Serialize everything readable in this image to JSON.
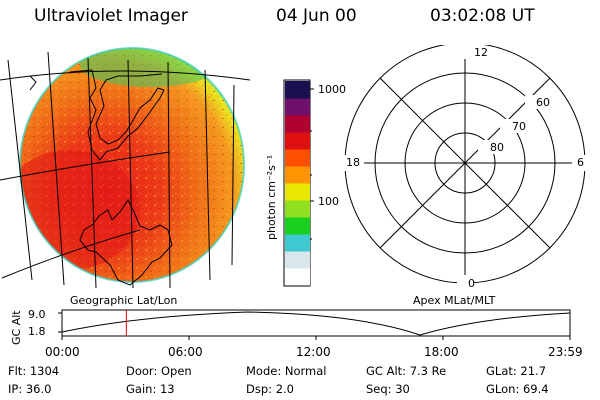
{
  "header": {
    "instrument": "Ultraviolet Imager",
    "date": "04 Jun 00",
    "time": "03:02:08 UT"
  },
  "colorbar": {
    "unit_label": "photon cm⁻²s⁻¹",
    "tick_labels": [
      "1000",
      "100"
    ],
    "colors": [
      "#ffffff",
      "#d8e8ea",
      "#40c8d0",
      "#18d020",
      "#90e020",
      "#e8e800",
      "#ff9400",
      "#ff5000",
      "#e01010",
      "#b00030",
      "#70106a",
      "#1a1050"
    ]
  },
  "polar_grid": {
    "mlt_labels": [
      "12",
      "18",
      "6",
      "0"
    ],
    "mlat_labels": [
      "60",
      "70",
      "80"
    ]
  },
  "panel_labels": {
    "left": "Geographic Lat/Lon",
    "right": "Apex MLat/MLT"
  },
  "orbit_plot": {
    "ylabel": "GC Alt",
    "y_ticks": [
      "9.0",
      "1.8"
    ],
    "x_ticks": [
      "00:00",
      "06:00",
      "12:00",
      "18:00",
      "23:59"
    ],
    "current_time_marker_hour": 3.04,
    "marker_color": "#e00000"
  },
  "status": {
    "row1": [
      {
        "label": "Flt:",
        "value": "1304"
      },
      {
        "label": "Door:",
        "value": "Open"
      },
      {
        "label": "Mode:",
        "value": "Normal"
      },
      {
        "label": "GC Alt:",
        "value": "7.3 Re"
      },
      {
        "label": "GLat:",
        "value": "21.7"
      }
    ],
    "row2": [
      {
        "label": "IP:",
        "value": "36.0"
      },
      {
        "label": "Gain:",
        "value": "13"
      },
      {
        "label": "Dsp:",
        "value": "2.0"
      },
      {
        "label": "Seq:",
        "value": "30"
      },
      {
        "label": "GLon:",
        "value": "69.4"
      }
    ]
  }
}
